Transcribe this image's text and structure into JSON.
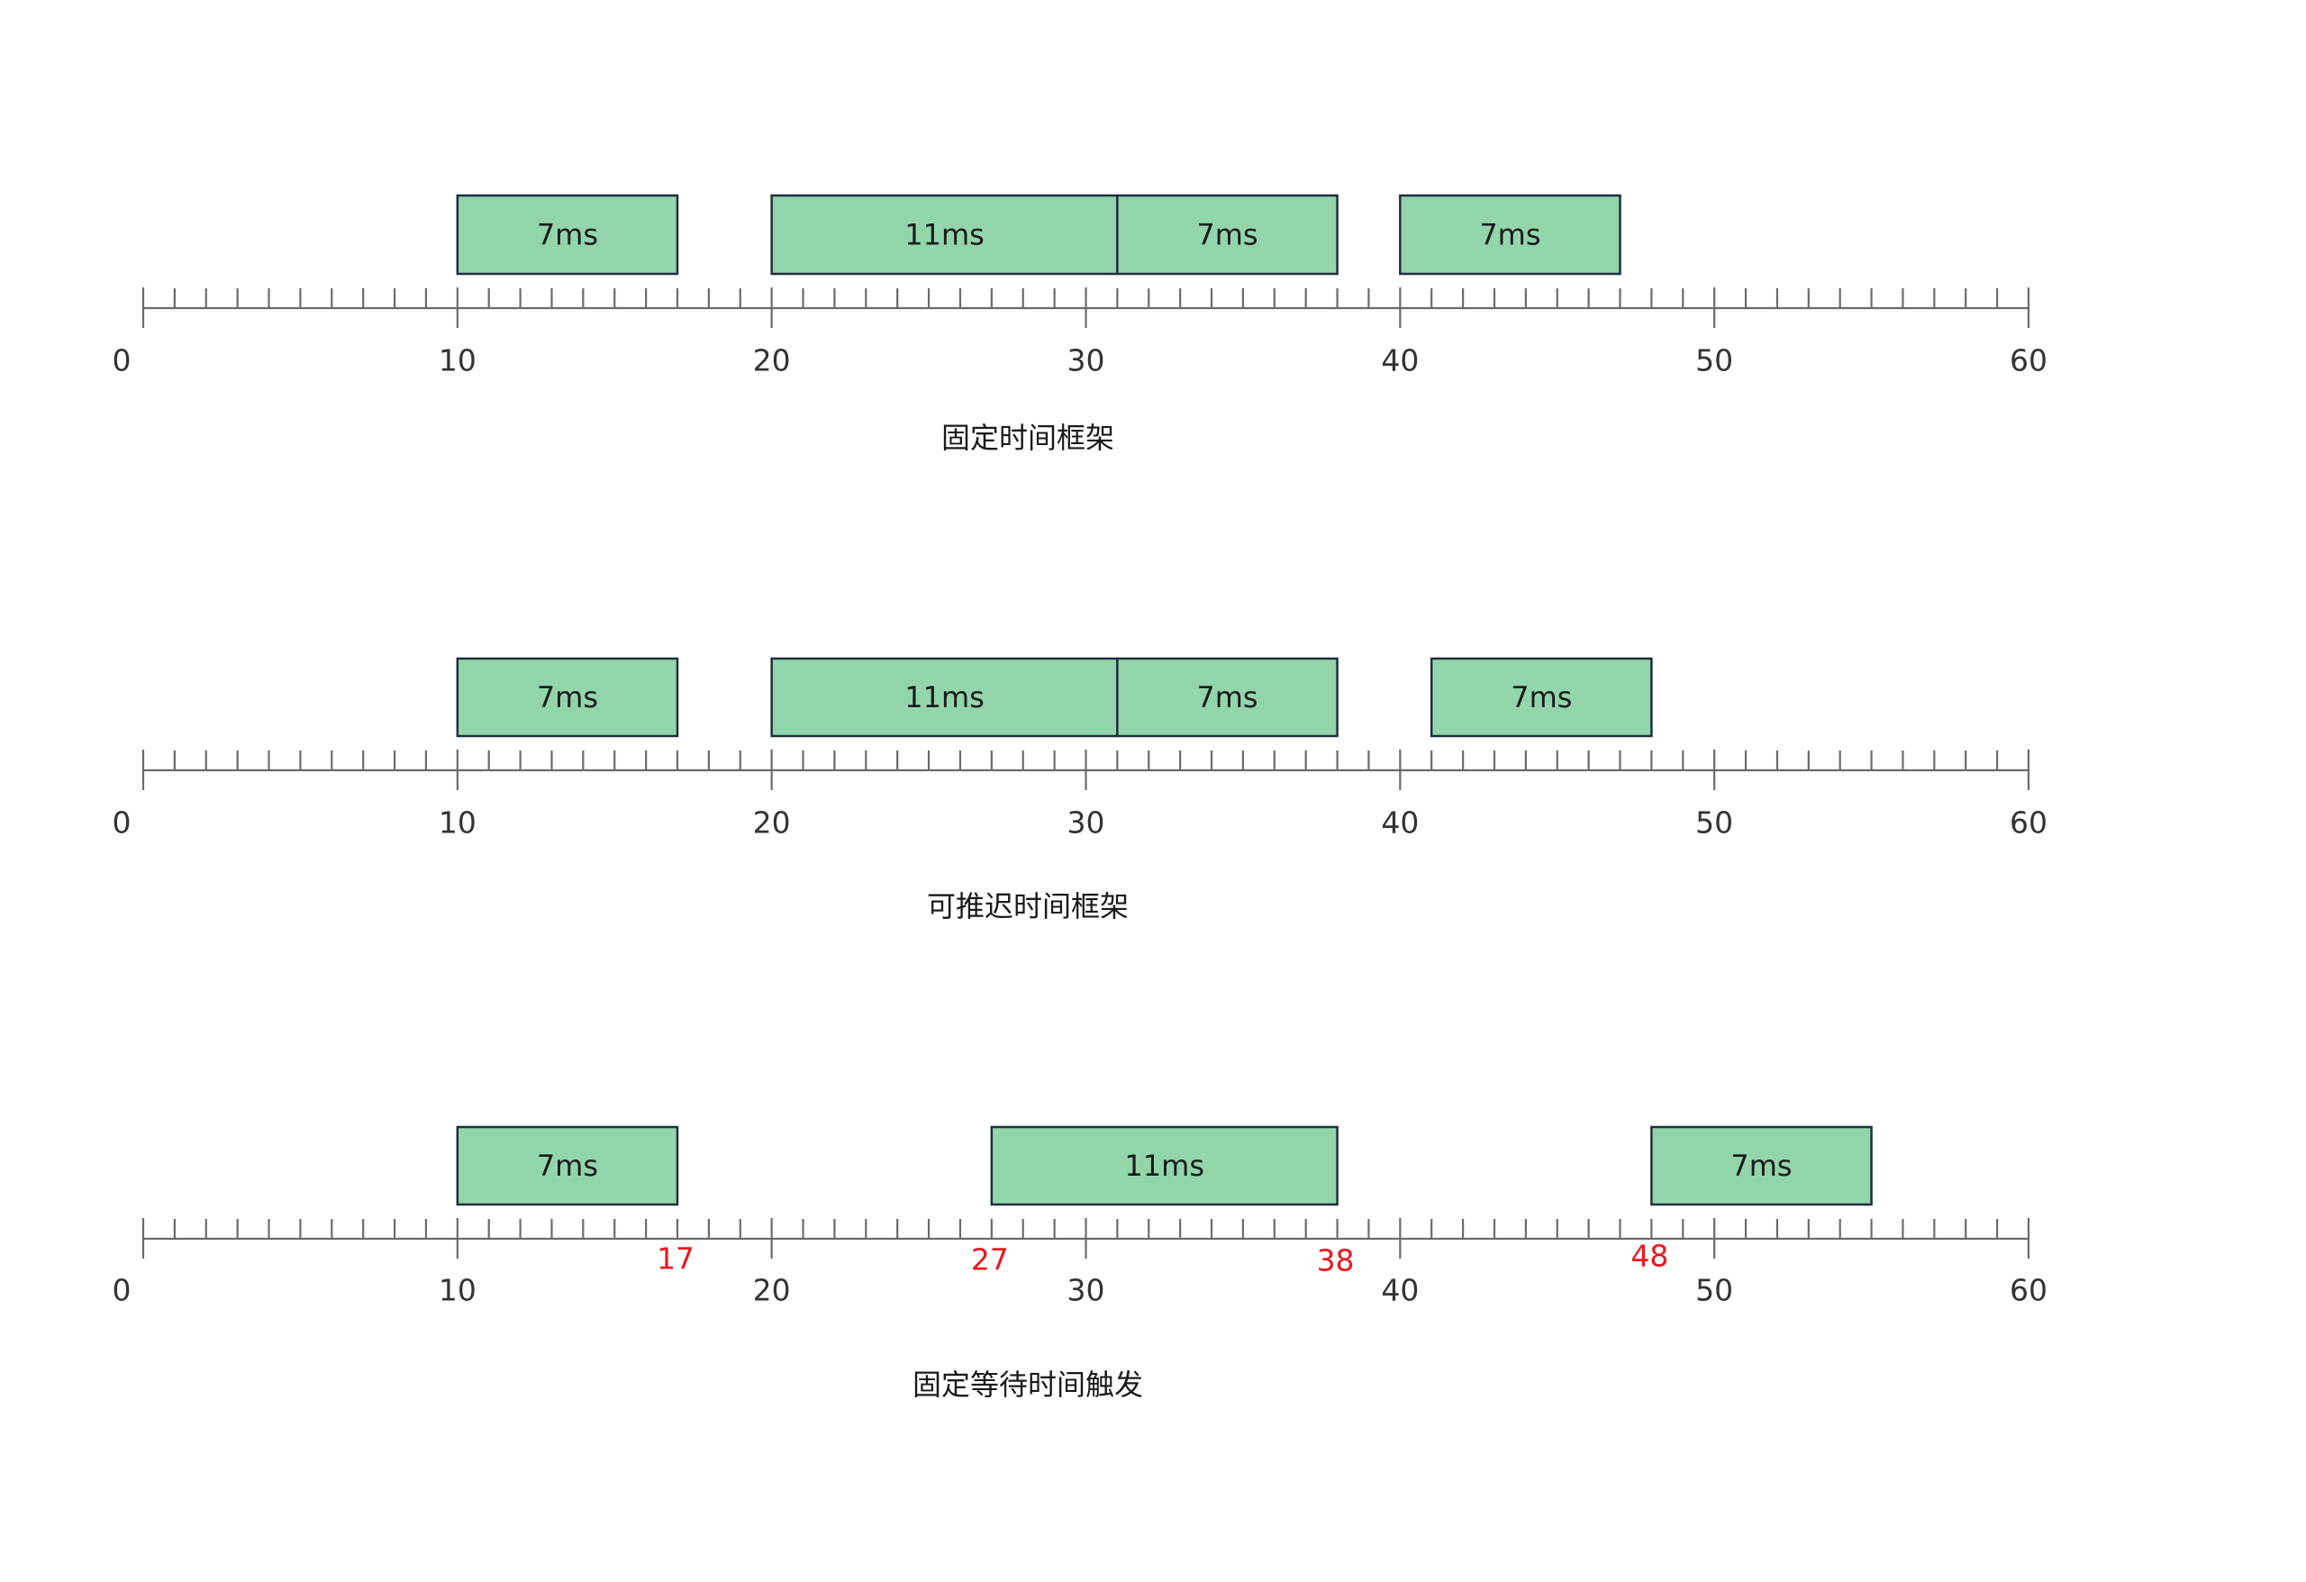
{
  "colors": {
    "block_fill": "#92d5aa",
    "block_stroke": "#1f2f3f",
    "axis": "#6b6b6b",
    "marker": "#e8191f",
    "text": "#1a1a1a"
  },
  "axis": {
    "min": 0,
    "max": 60,
    "minor_step": 1,
    "major_step": 10,
    "labels": [
      "0",
      "10",
      "20",
      "30",
      "40",
      "50",
      "60"
    ]
  },
  "timelines": [
    {
      "caption": "固定时间框架",
      "blocks": [
        {
          "start": 10,
          "end": 17,
          "label": "7ms"
        },
        {
          "start": 20,
          "end": 31,
          "label": "11ms"
        },
        {
          "start": 31,
          "end": 38,
          "label": "7ms"
        },
        {
          "start": 40,
          "end": 47,
          "label": "7ms"
        }
      ],
      "markers": []
    },
    {
      "caption": "可推迟时间框架",
      "blocks": [
        {
          "start": 10,
          "end": 17,
          "label": "7ms"
        },
        {
          "start": 20,
          "end": 31,
          "label": "11ms"
        },
        {
          "start": 31,
          "end": 38,
          "label": "7ms"
        },
        {
          "start": 41,
          "end": 48,
          "label": "7ms"
        }
      ],
      "markers": []
    },
    {
      "caption": "固定等待时间触发",
      "blocks": [
        {
          "start": 10,
          "end": 17,
          "label": "7ms"
        },
        {
          "start": 27,
          "end": 38,
          "label": "11ms"
        },
        {
          "start": 48,
          "end": 55,
          "label": "7ms"
        }
      ],
      "markers": [
        {
          "at": 17,
          "label": "17"
        },
        {
          "at": 27,
          "label": "27"
        },
        {
          "at": 38,
          "label": "38"
        },
        {
          "at": 48,
          "label": "48"
        }
      ]
    }
  ]
}
